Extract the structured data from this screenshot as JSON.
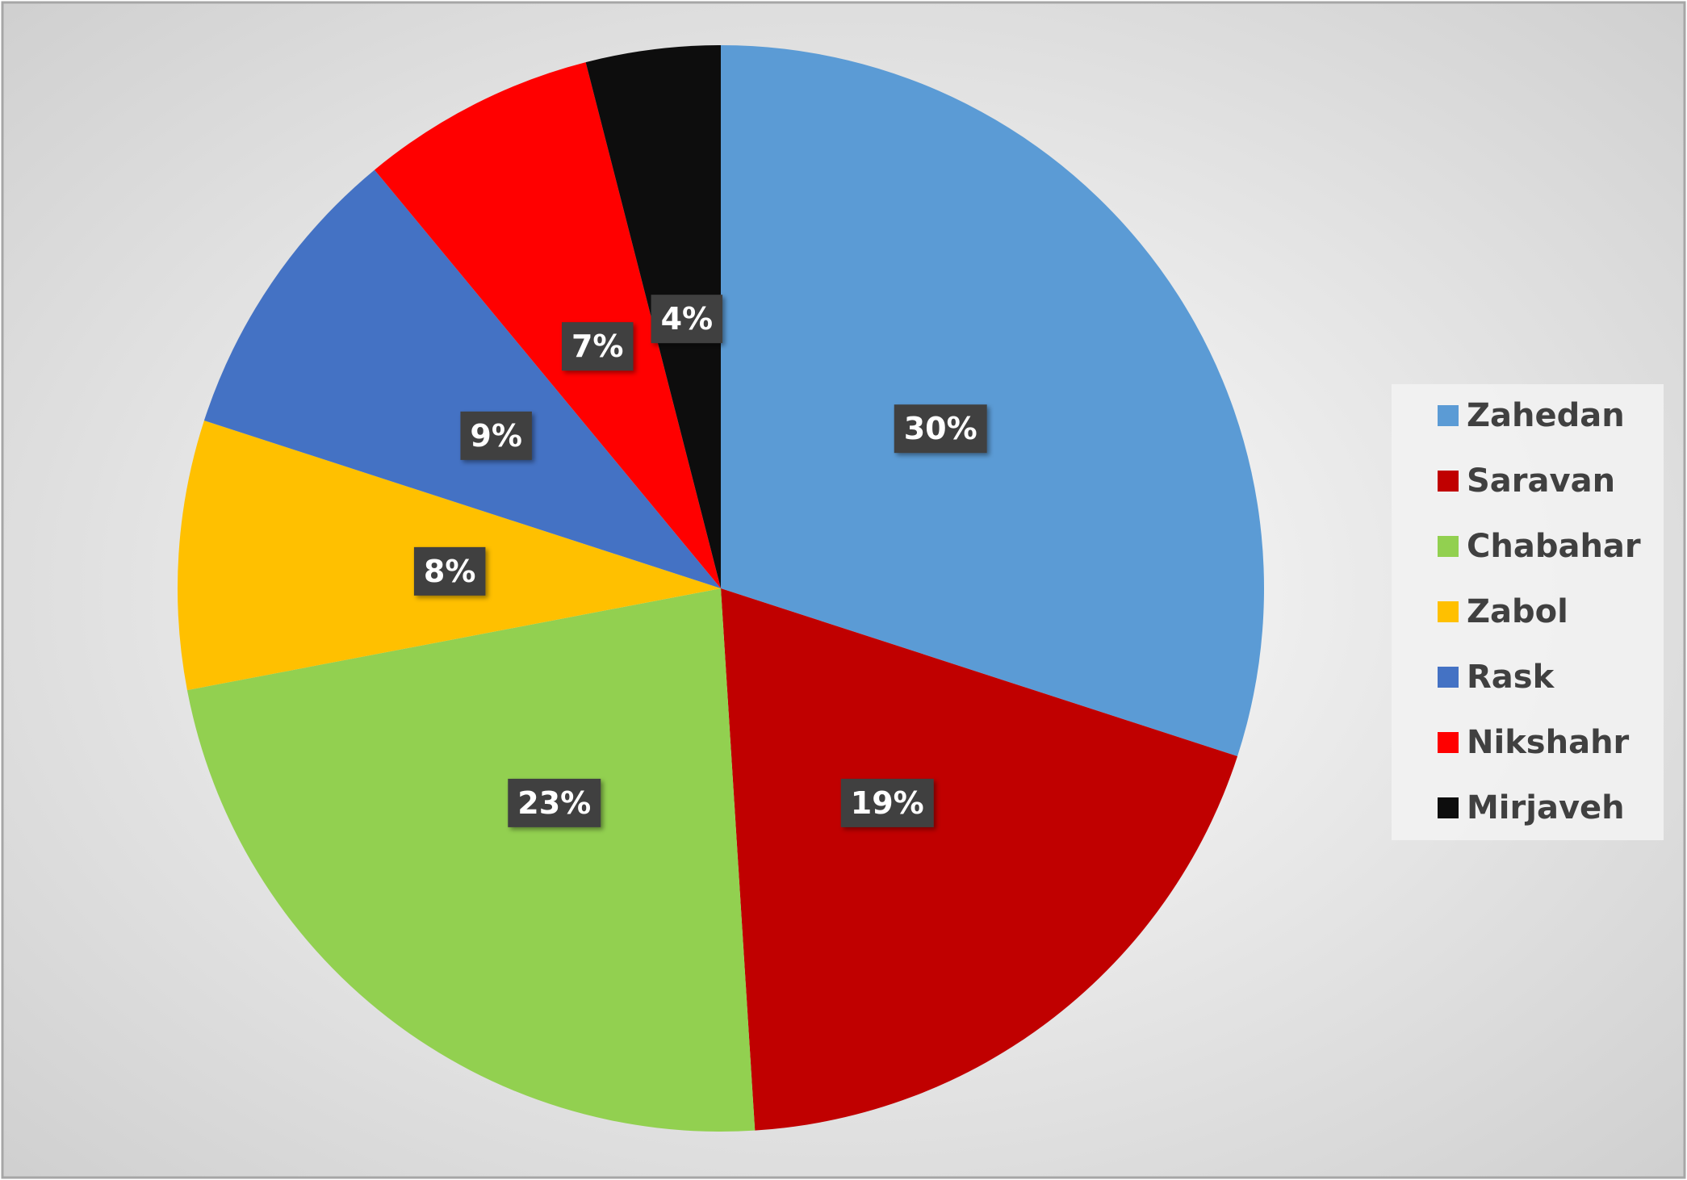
{
  "chart_data": {
    "type": "pie",
    "categories": [
      "Zahedan",
      "Saravan",
      "Chabahar",
      "Zabol",
      "Rask",
      "Nikshahr",
      "Mirjaveh"
    ],
    "values": [
      30,
      19,
      23,
      8,
      9,
      7,
      4
    ],
    "value_labels": [
      "30%",
      "19%",
      "23%",
      "8%",
      "9%",
      "7%",
      "4%"
    ],
    "colors": [
      "#5b9bd5",
      "#c00000",
      "#92d050",
      "#ffc000",
      "#4472c4",
      "#ff0000",
      "#0d0d0d"
    ],
    "legend": "right"
  }
}
